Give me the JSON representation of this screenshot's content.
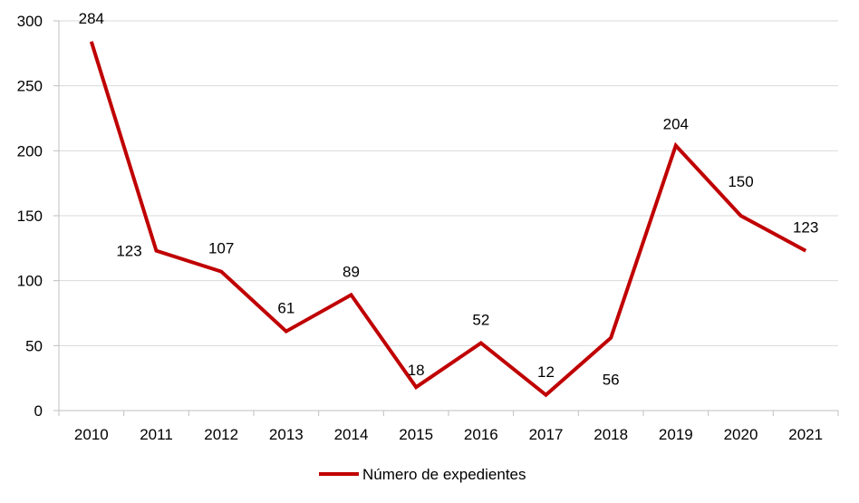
{
  "chart_data": {
    "type": "line",
    "title": "",
    "xlabel": "",
    "ylabel": "",
    "categories": [
      "2010",
      "2011",
      "2012",
      "2013",
      "2014",
      "2015",
      "2016",
      "2017",
      "2018",
      "2019",
      "2020",
      "2021"
    ],
    "series": [
      {
        "name": "Número de expedientes",
        "values": [
          284,
          123,
          107,
          61,
          89,
          18,
          52,
          12,
          56,
          204,
          150,
          123
        ],
        "color": "#C00000"
      }
    ],
    "ylim": [
      0,
      300
    ],
    "yticks": [
      0,
      50,
      100,
      150,
      200,
      250,
      300
    ],
    "grid": true,
    "legend": "bottom-center",
    "data_labels": true
  }
}
